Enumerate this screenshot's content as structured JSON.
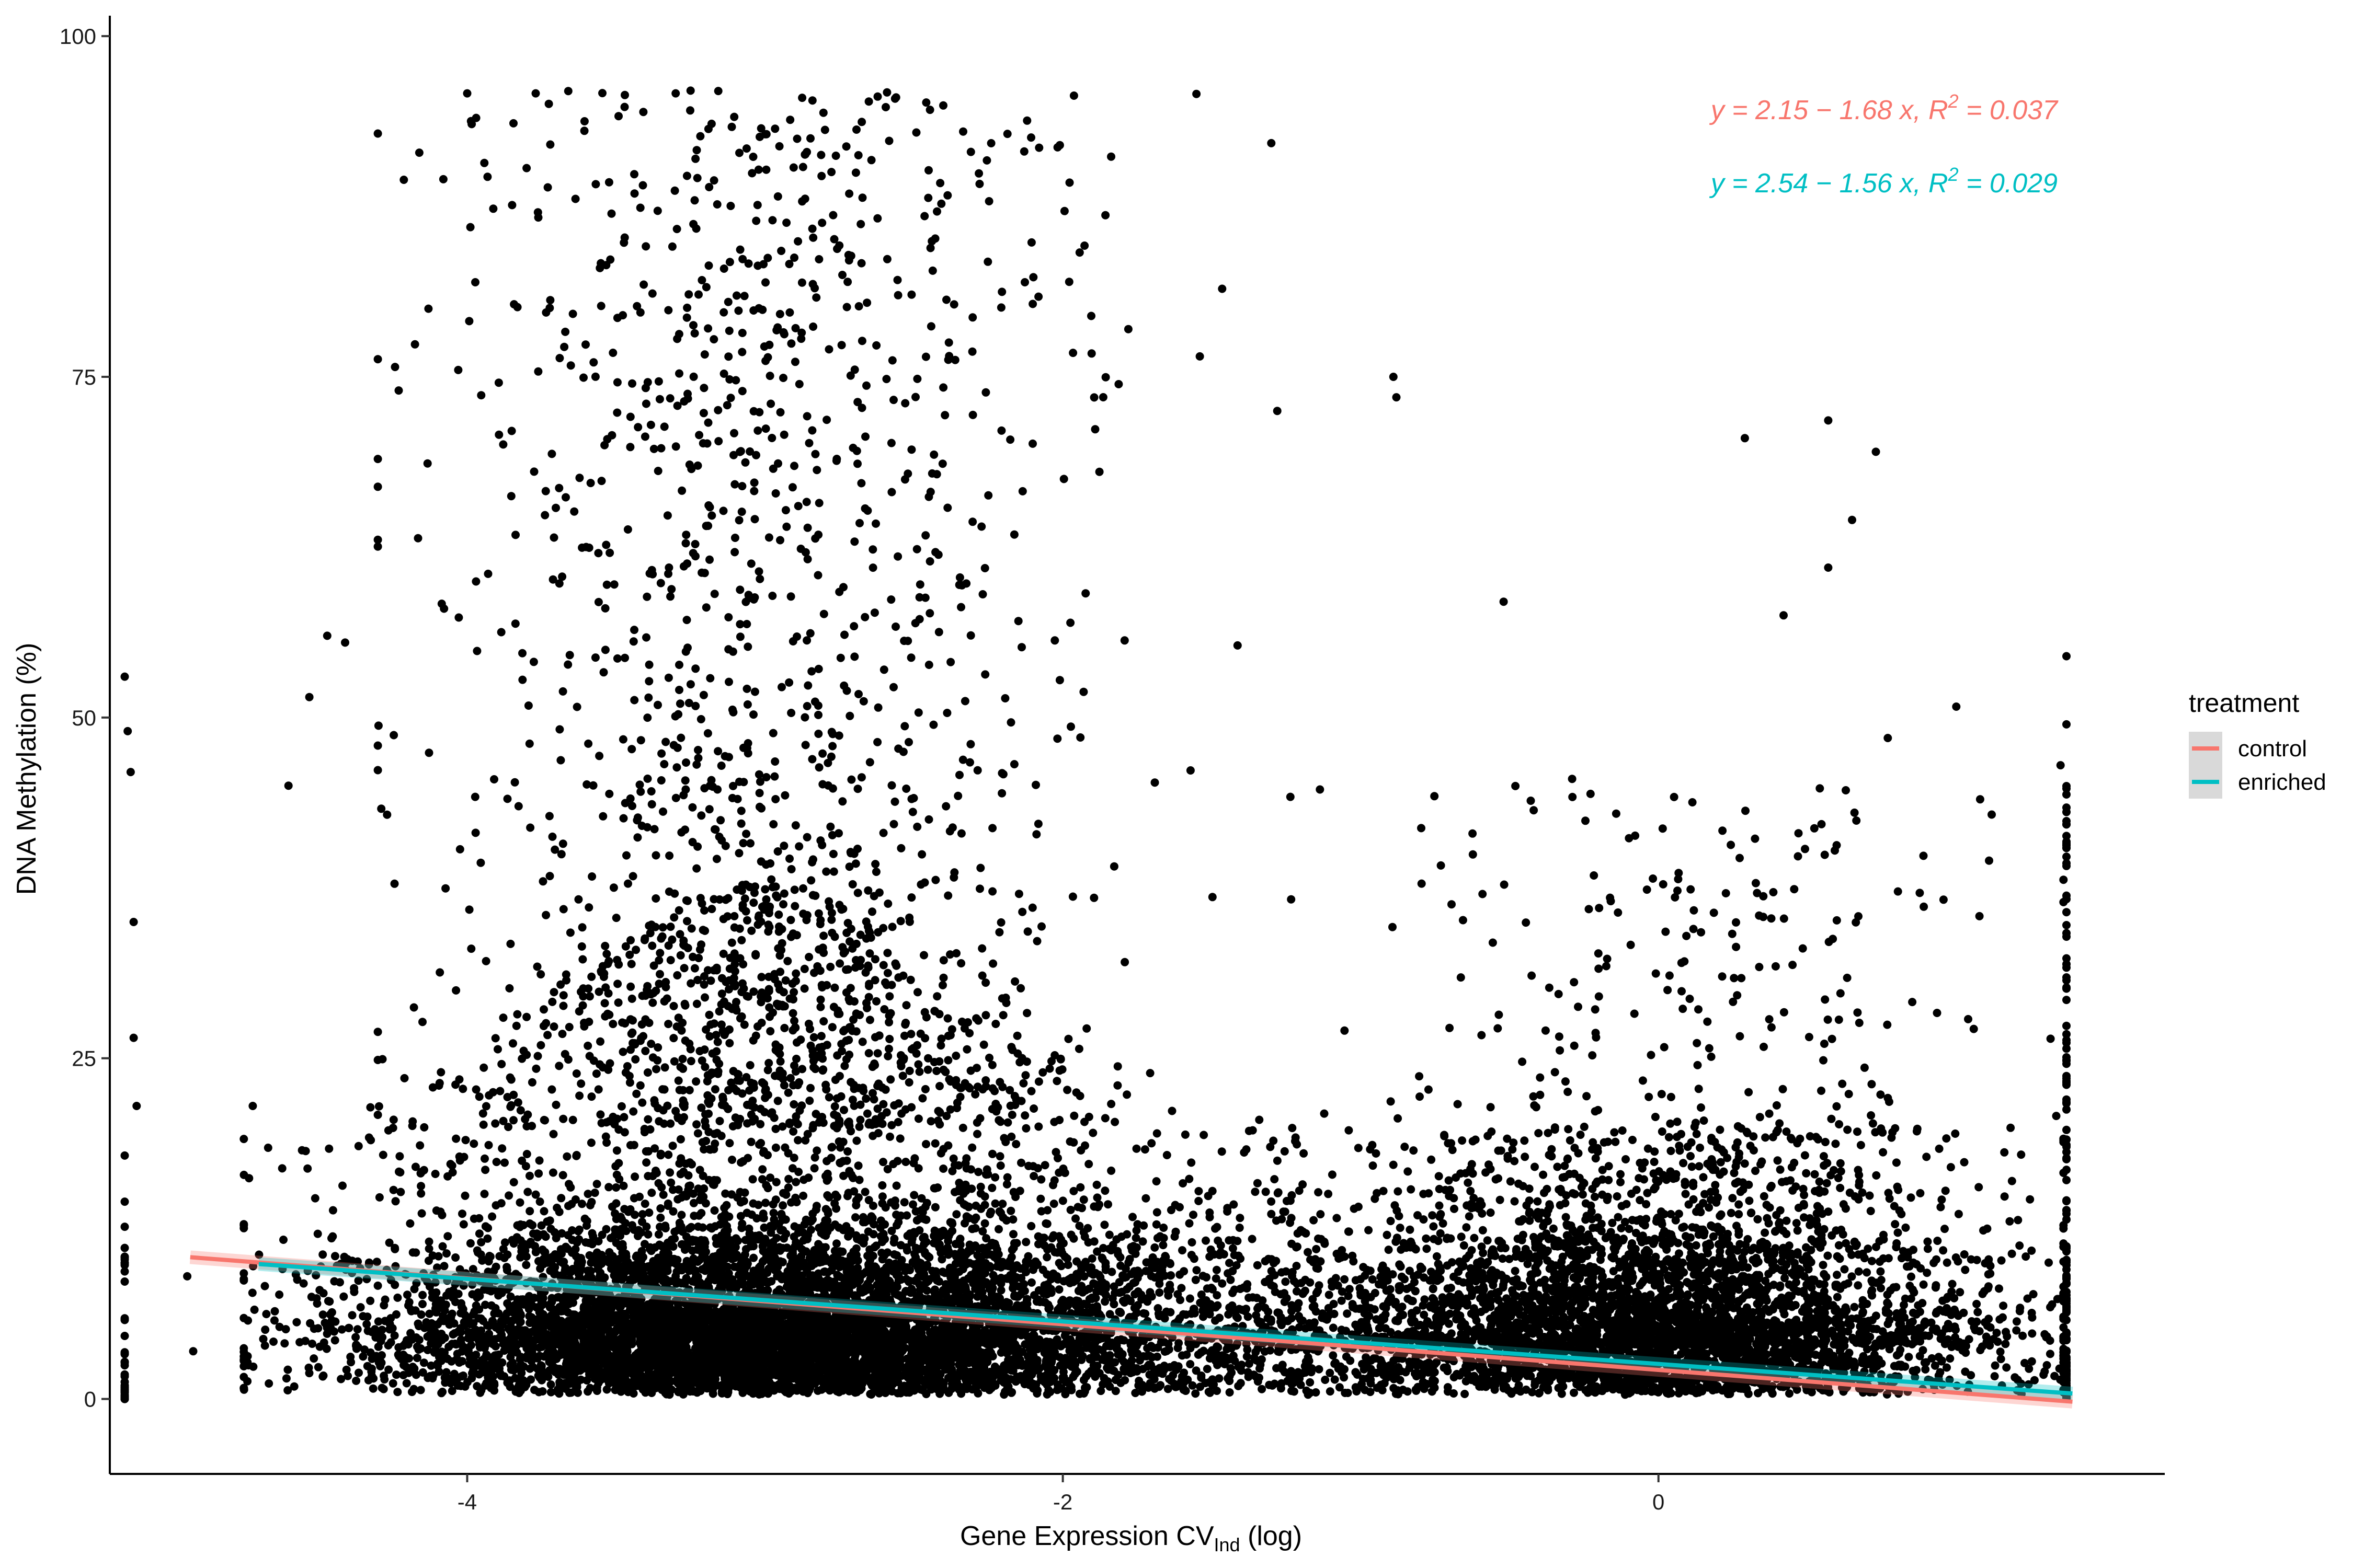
{
  "chart_data": {
    "type": "scatter",
    "xlabel": "Gene Expression CV",
    "xlabel_subscript": "Ind",
    "xlabel_suffix": " (log)",
    "ylabel": "DNA Methylation (%)",
    "xlim": [
      -5.2,
      1.7
    ],
    "ylim": [
      -5.5,
      101.5
    ],
    "x_ticks": [
      -4,
      -2,
      0
    ],
    "y_ticks": [
      0,
      25,
      50,
      75,
      100
    ],
    "grid": false,
    "legend": {
      "title": "treatment",
      "position": "right",
      "entries": [
        {
          "label": "control",
          "color": "#F8766D"
        },
        {
          "label": "enriched",
          "color": "#00BFC4"
        }
      ]
    },
    "annotations": [
      {
        "text_pre": "y = 2.15 − 1.68 x,  R",
        "sup": "2",
        "text_post": " = 0.037",
        "color": "#F8766D",
        "position": "top-right"
      },
      {
        "text_pre": "y = 2.54 − 1.56 x,  R",
        "sup": "2",
        "text_post": " = 0.029",
        "color": "#00BFC4",
        "position": "top-right"
      }
    ],
    "series": [
      {
        "name": "control",
        "type": "line",
        "color": "#F8766D",
        "x": [
          -4.93,
          1.39
        ],
        "y": [
          10.4,
          -0.2
        ]
      },
      {
        "name": "enriched",
        "type": "line",
        "color": "#00BFC4",
        "x": [
          -4.7,
          1.39
        ],
        "y": [
          9.9,
          0.4
        ]
      }
    ],
    "points": {
      "color": "#000000",
      "note_outliers": [
        [
          -5.15,
          53
        ],
        [
          -5.14,
          49
        ],
        [
          -5.13,
          46
        ],
        [
          -5.12,
          35
        ],
        [
          -5.12,
          26.5
        ],
        [
          -5.11,
          21.5
        ],
        [
          -4.94,
          9
        ],
        [
          -4.92,
          3.5
        ],
        [
          -4.72,
          21.5
        ],
        [
          -4.6,
          45
        ],
        [
          -4.53,
          51.5
        ],
        [
          -4.47,
          56
        ],
        [
          -4.41,
          55.5
        ],
        [
          -4.23,
          74
        ],
        [
          -4.13,
          80
        ],
        [
          -4.08,
          89.5
        ],
        [
          -4.03,
          75.5
        ],
        [
          -4.0,
          95.8
        ],
        [
          -3.97,
          94
        ],
        [
          -3.77,
          95.8
        ],
        [
          -3.3,
          95.8
        ],
        [
          -3.25,
          96
        ],
        [
          -2.56,
          95.5
        ],
        [
          -2.12,
          93.8
        ],
        [
          -2.01,
          92
        ],
        [
          -1.78,
          78.5
        ],
        [
          -1.54,
          76.5
        ],
        [
          -1.28,
          72.5
        ],
        [
          -0.89,
          75
        ],
        [
          -0.88,
          73.5
        ],
        [
          -0.52,
          58.5
        ],
        [
          -0.29,
          45.5
        ],
        [
          0.29,
          70.5
        ],
        [
          0.42,
          57.5
        ],
        [
          0.57,
          71.8
        ],
        [
          0.57,
          61
        ],
        [
          0.65,
          64.5
        ],
        [
          0.73,
          69.5
        ],
        [
          0.77,
          48.5
        ],
        [
          1.0,
          50.8
        ],
        [
          1.08,
          44
        ],
        [
          1.11,
          39.5
        ],
        [
          1.35,
          46.5
        ],
        [
          1.37,
          54.5
        ],
        [
          1.37,
          49.5
        ]
      ]
    }
  }
}
